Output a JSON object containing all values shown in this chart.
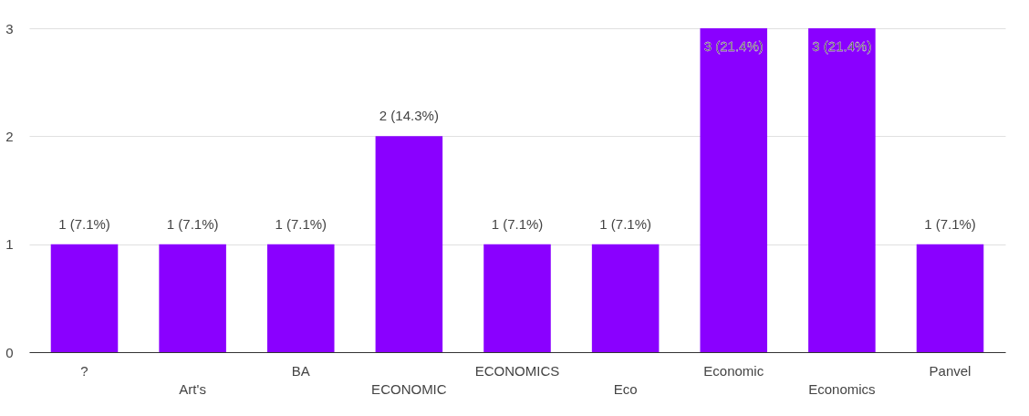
{
  "chart_data": {
    "type": "bar",
    "categories": [
      "?",
      "Art's",
      "BA",
      "ECONOMIC",
      "ECONOMICS",
      "Eco",
      "Economic",
      "Economics",
      "Panvel"
    ],
    "values": [
      1,
      1,
      1,
      2,
      1,
      1,
      3,
      3,
      1
    ],
    "value_labels": [
      "1 (7.1%)",
      "1 (7.1%)",
      "1 (7.1%)",
      "2 (14.3%)",
      "1 (7.1%)",
      "1 (7.1%)",
      "3 (21.4%)",
      "3 (21.4%)",
      "1 (7.1%)"
    ],
    "color": "#8a00ff",
    "ylim": [
      0,
      3
    ],
    "yticks": [
      0,
      1,
      2,
      3
    ],
    "grid": "y"
  }
}
